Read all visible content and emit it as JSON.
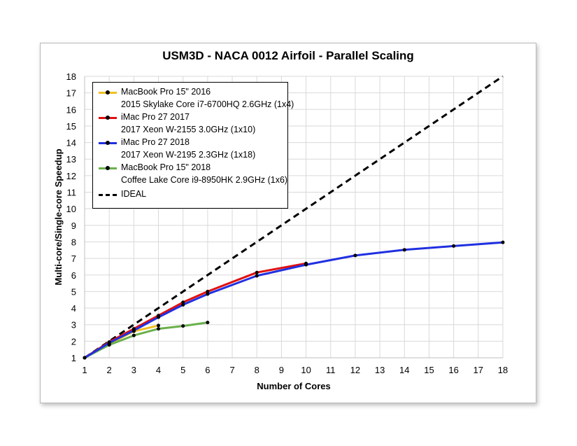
{
  "chart_data": {
    "type": "line",
    "title": "USM3D - NACA 0012 Airfoil - Parallel Scaling",
    "xlabel": "Number of Cores",
    "ylabel": "Multi-core/Single-core Speedup",
    "xlim": [
      1,
      18
    ],
    "ylim": [
      1,
      18
    ],
    "xticks": [
      1,
      2,
      3,
      4,
      5,
      6,
      7,
      8,
      9,
      10,
      11,
      12,
      13,
      14,
      15,
      16,
      17,
      18
    ],
    "yticks": [
      1,
      2,
      3,
      4,
      5,
      6,
      7,
      8,
      9,
      10,
      11,
      12,
      13,
      14,
      15,
      16,
      17,
      18
    ],
    "grid": true,
    "legend_position": "top-left",
    "series": [
      {
        "name": "MacBook Pro 15\" 2016",
        "subtitle": "2015 Skylake Core i7-6700HQ 2.6GHz (1x4)",
        "color": "#f0c020",
        "x": [
          1,
          2,
          3,
          4
        ],
        "y": [
          1,
          1.85,
          2.6,
          2.95
        ]
      },
      {
        "name": "iMac Pro 27 2017",
        "subtitle": "2017 Xeon W-2155 3.0GHz (1x10)",
        "color": "#e01010",
        "x": [
          1,
          2,
          3,
          4,
          5,
          6,
          8,
          10
        ],
        "y": [
          1,
          1.95,
          2.75,
          3.55,
          4.35,
          5.0,
          6.15,
          6.7
        ]
      },
      {
        "name": "iMac Pro 27 2018",
        "subtitle": "2017 Xeon W-2195 2.3GHz (1x18)",
        "color": "#2030e0",
        "x": [
          1,
          2,
          3,
          4,
          5,
          6,
          8,
          10,
          12,
          14,
          16,
          18
        ],
        "y": [
          1,
          1.9,
          2.65,
          3.45,
          4.2,
          4.85,
          5.95,
          6.62,
          7.18,
          7.52,
          7.75,
          7.97
        ]
      },
      {
        "name": "MacBook Pro 15\" 2018",
        "subtitle": "Coffee Lake Core i9-8950HK 2.9GHz (1x6)",
        "color": "#6ab04c",
        "x": [
          1,
          2,
          3,
          4,
          5,
          6
        ],
        "y": [
          1,
          1.78,
          2.35,
          2.75,
          2.92,
          3.13
        ]
      },
      {
        "name": "IDEAL",
        "subtitle": "",
        "color": "#000000",
        "dashed": true,
        "x": [
          1,
          18
        ],
        "y": [
          1,
          18
        ]
      }
    ]
  }
}
